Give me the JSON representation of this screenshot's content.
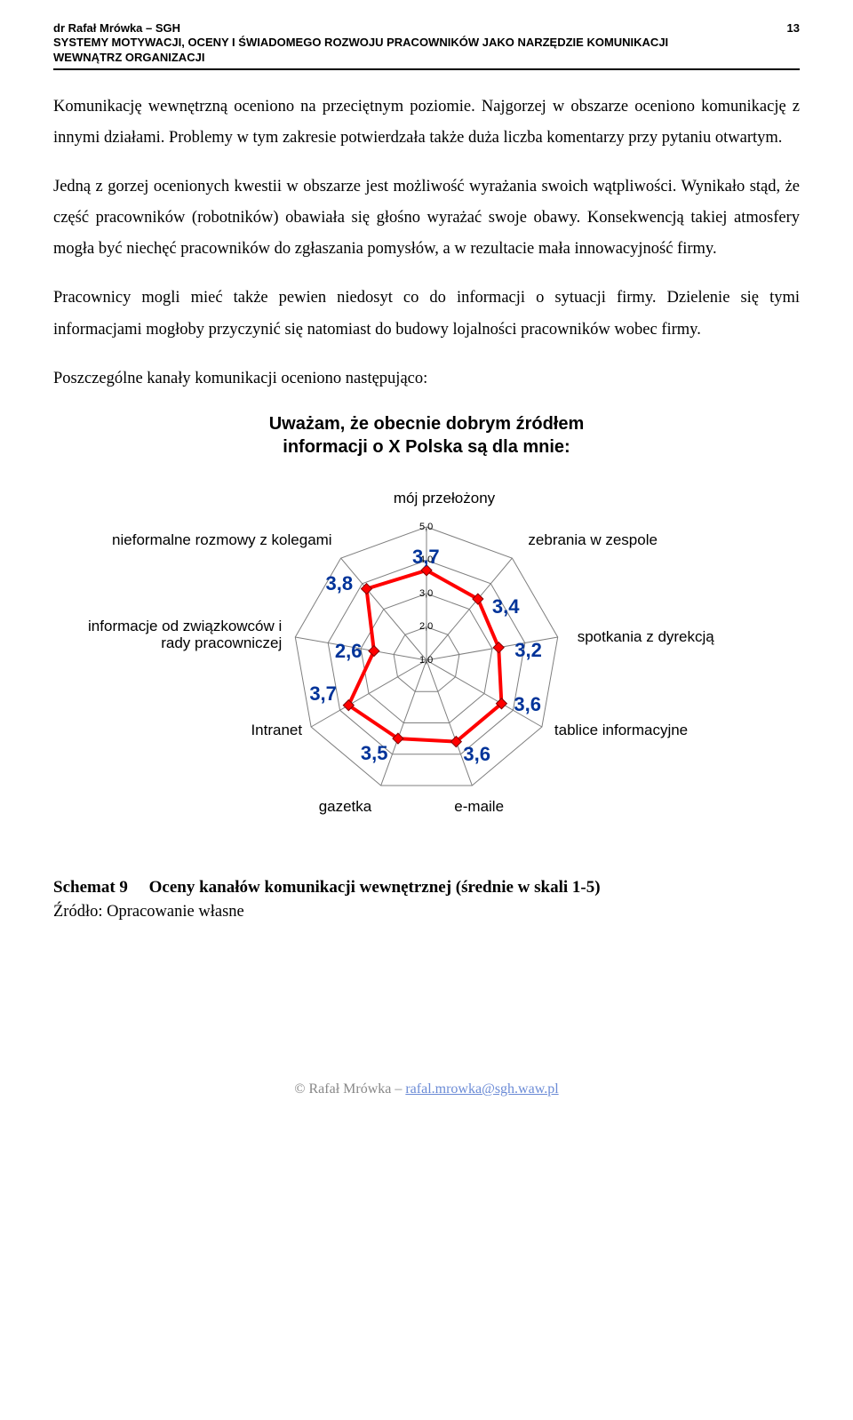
{
  "header": {
    "author": "dr Rafał Mrówka – SGH",
    "title_line1": "SYSTEMY MOTYWACJI, OCENY I ŚWIADOMEGO ROZWOJU PRACOWNIKÓW JAKO NARZĘDZIE KOMUNIKACJI",
    "title_line2": "WEWNĄTRZ ORGANIZACJI",
    "page": "13"
  },
  "paragraphs": {
    "p1": "Komunikację wewnętrzną oceniono na przeciętnym poziomie. Najgorzej w obszarze oceniono komunikację z innymi działami. Problemy w tym zakresie potwierdzała także duża liczba komentarzy przy pytaniu otwartym.",
    "p2": "Jedną z gorzej ocenionych kwestii w obszarze jest możliwość wyrażania swoich wątpliwości. Wynikało stąd, że część pracowników (robotników) obawiała się głośno wyrażać swoje obawy. Konsekwencją takiej atmosfery mogła być niechęć pracowników do zgłaszania pomysłów, a w rezultacie mała innowacyjność firmy.",
    "p3": "Pracownicy mogli mieć także pewien niedosyt co do informacji o sytuacji firmy. Dzielenie się tymi informacjami mogłoby przyczynić się natomiast do budowy lojalności pracowników wobec firmy.",
    "p4": "Poszczególne kanały komunikacji oceniono następująco:"
  },
  "chart": {
    "type": "radar",
    "title_l1": "Uważam, że obecnie dobrym źródłem",
    "title_l2": "informacji o X Polska są dla mnie:",
    "n_axes": 9,
    "scale_min": 1.0,
    "scale_max": 5.0,
    "tick_step": 1.0,
    "ticks": [
      "1,0",
      "2,0",
      "3,0",
      "4,0",
      "5,0"
    ],
    "grid_color": "#7f7f7f",
    "grid_width": 1,
    "line_color": "#ff0000",
    "line_width": 4,
    "marker_fill": "#ff0000",
    "marker_stroke": "#800000",
    "marker_size": 6,
    "value_color": "#003399",
    "value_fontsize": 22,
    "label_fontsize": 17,
    "background_color": "#ffffff",
    "axes": [
      {
        "label": "mój przełożony",
        "value": 3.7,
        "value_text": "3,7"
      },
      {
        "label": "zebrania w zespole",
        "value": 3.4,
        "value_text": "3,4"
      },
      {
        "label": "spotkania z dyrekcją",
        "value": 3.2,
        "value_text": "3,2"
      },
      {
        "label": "tablice informacyjne",
        "value": 3.6,
        "value_text": "3,6"
      },
      {
        "label": "e-maile",
        "value": 3.6,
        "value_text": "3,6"
      },
      {
        "label": "gazetka",
        "value": 3.5,
        "value_text": "3,5"
      },
      {
        "label": "Intranet",
        "value": 3.7,
        "value_text": "3,7"
      },
      {
        "label": "informacje od związkowców i rady pracowniczej",
        "value": 2.6,
        "value_text": "2,6"
      },
      {
        "label": "nieformalne rozmowy z kolegami",
        "value": 3.8,
        "value_text": "3,8"
      }
    ]
  },
  "caption": {
    "number": "Schemat 9",
    "text": "Oceny kanałów komunikacji wewnętrznej (średnie w skali 1-5)"
  },
  "source": "Źródło: Opracowanie własne",
  "footer": {
    "copyright": "© Rafał Mrówka – ",
    "email": "rafal.mrowka@sgh.waw.pl"
  }
}
